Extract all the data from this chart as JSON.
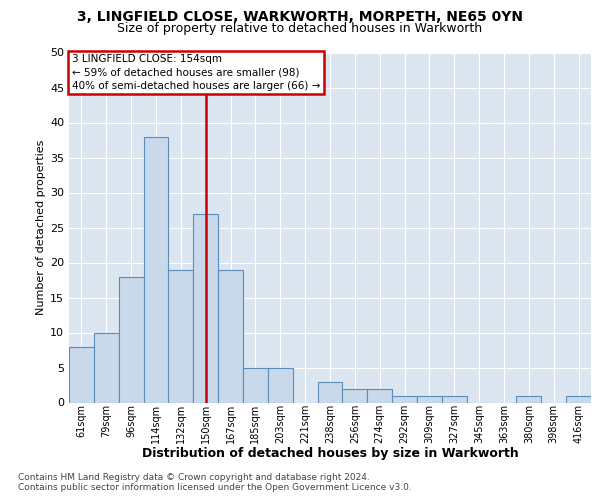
{
  "title1": "3, LINGFIELD CLOSE, WARKWORTH, MORPETH, NE65 0YN",
  "title2": "Size of property relative to detached houses in Warkworth",
  "xlabel": "Distribution of detached houses by size in Warkworth",
  "ylabel": "Number of detached properties",
  "categories": [
    "61sqm",
    "79sqm",
    "96sqm",
    "114sqm",
    "132sqm",
    "150sqm",
    "167sqm",
    "185sqm",
    "203sqm",
    "221sqm",
    "238sqm",
    "256sqm",
    "274sqm",
    "292sqm",
    "309sqm",
    "327sqm",
    "345sqm",
    "363sqm",
    "380sqm",
    "398sqm",
    "416sqm"
  ],
  "values": [
    8,
    10,
    18,
    38,
    19,
    27,
    19,
    5,
    5,
    0,
    3,
    2,
    2,
    1,
    1,
    1,
    0,
    0,
    1,
    0,
    1
  ],
  "bar_color": "#c9d9ea",
  "bar_edge_color": "#5b8db8",
  "annotation_line1": "3 LINGFIELD CLOSE: 154sqm",
  "annotation_line2": "← 59% of detached houses are smaller (98)",
  "annotation_line3": "40% of semi-detached houses are larger (66) →",
  "annotation_box_color": "#ffffff",
  "annotation_box_edge_color": "#cc0000",
  "vline_color": "#cc0000",
  "vline_index": 5,
  "footer1": "Contains HM Land Registry data © Crown copyright and database right 2024.",
  "footer2": "Contains public sector information licensed under the Open Government Licence v3.0.",
  "ylim": [
    0,
    50
  ],
  "yticks": [
    0,
    5,
    10,
    15,
    20,
    25,
    30,
    35,
    40,
    45,
    50
  ],
  "plot_bg_color": "#dce6f1",
  "fig_bg_color": "#ffffff",
  "grid_color": "#ffffff",
  "title1_fontsize": 10,
  "title2_fontsize": 9,
  "ylabel_fontsize": 8,
  "xlabel_fontsize": 9,
  "tick_fontsize": 7,
  "footer_fontsize": 6.5
}
